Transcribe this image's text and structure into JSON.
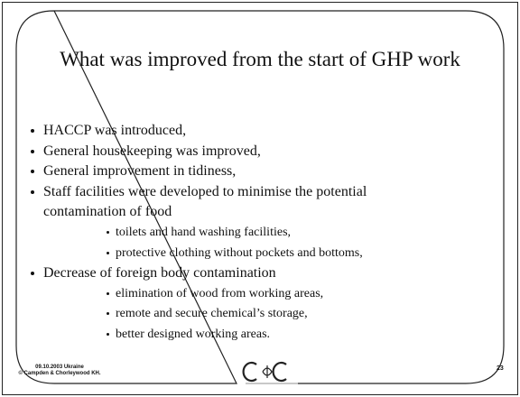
{
  "title": "What was improved from the start of GHP work",
  "items": [
    {
      "level": 0,
      "lines": [
        "HACCP was introduced,"
      ]
    },
    {
      "level": 0,
      "lines": [
        "General housekeeping was improved,"
      ]
    },
    {
      "level": 0,
      "lines": [
        "General improvement in tidiness,"
      ]
    },
    {
      "level": 0,
      "lines": [
        "Staff facilities were developed to minimise the potential",
        "contamination of food"
      ]
    },
    {
      "level": 1,
      "lines": [
        "toilets and hand washing facilities,"
      ]
    },
    {
      "level": 1,
      "lines": [
        "protective clothing without pockets and bottoms,"
      ]
    },
    {
      "level": 0,
      "lines": [
        "Decrease of foreign body contamination"
      ]
    },
    {
      "level": 1,
      "lines": [
        "elimination of wood from working areas,"
      ]
    },
    {
      "level": 1,
      "lines": [
        "remote and secure chemical’s storage,"
      ]
    },
    {
      "level": 1,
      "lines": [
        "better designed working areas."
      ]
    }
  ],
  "footer": [
    "09.10.2003 Ukraine",
    "© Campden & Chorleywood KH."
  ],
  "page_number": "23"
}
